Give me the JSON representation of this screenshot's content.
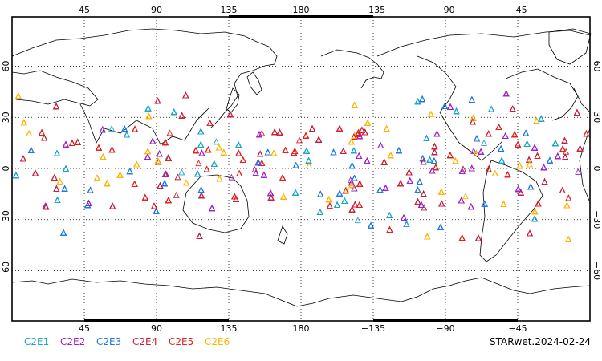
{
  "chart_data": {
    "type": "scatter",
    "projection": "equirectangular",
    "central_longitude": 180,
    "lon_ticks": [
      45,
      90,
      135,
      180,
      -135,
      -90,
      -45
    ],
    "lat_ticks": [
      60,
      30,
      0,
      -30,
      -60
    ],
    "lon_tick_labels": [
      "45",
      "90",
      "135",
      "180",
      "−135",
      "−90",
      "−45"
    ],
    "lat_tick_labels": [
      "60",
      "30",
      "0",
      "−30",
      "−60"
    ],
    "grid": true,
    "marker": "triangle-open",
    "lat_range_of_observations": [
      -42,
      44
    ],
    "series": [
      {
        "name": "C2E1",
        "color": "#17a6c9"
      },
      {
        "name": "C2E2",
        "color": "#a020d0"
      },
      {
        "name": "C2E3",
        "color": "#1e78e6"
      },
      {
        "name": "C2E4",
        "color": "#c81e3c"
      },
      {
        "name": "C2E5",
        "color": "#e61e1e"
      },
      {
        "name": "C2E6",
        "color": "#ffb400"
      }
    ]
  },
  "footer": {
    "product_label": "STARwet.2024-02-24"
  }
}
